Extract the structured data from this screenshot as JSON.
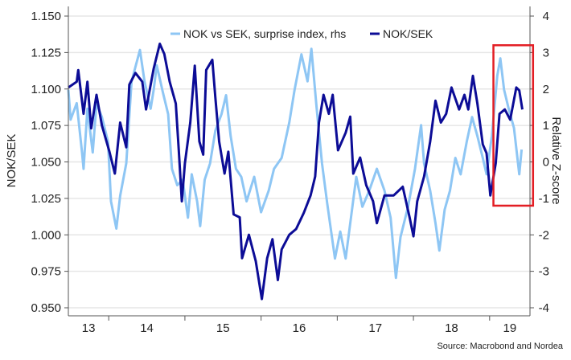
{
  "chart_data": {
    "type": "line",
    "title": "",
    "xlabel": "",
    "ylabel": "NOK/SEK",
    "ylabel_right": "Relative Z-score",
    "source": "Source: Macrobond and Nordea",
    "x_ticks": [
      "13",
      "14",
      "15",
      "16",
      "17",
      "18",
      "19"
    ],
    "xlim": [
      2013.47,
      2019.53
    ],
    "ylim": [
      0.95,
      1.15
    ],
    "ylim_right": [
      -4,
      4
    ],
    "y_ticks": [
      "0.950",
      "0.975",
      "1.000",
      "1.025",
      "1.050",
      "1.075",
      "1.100",
      "1.125",
      "1.150"
    ],
    "y_ticks_right": [
      "-4",
      "-3",
      "-2",
      "-1",
      "0",
      "1",
      "2",
      "3",
      "4"
    ],
    "grid": "horizontal",
    "legend_position": "top-center",
    "highlight_box": {
      "x_range": [
        2019.05,
        2019.57
      ],
      "z_range": [
        -1.2,
        3.2
      ],
      "color": "#e31e24"
    },
    "series": [
      {
        "name": "NOK vs SEK, surprise index, rhs",
        "axis": "right",
        "color": "#8ec6f4",
        "x": [
          2013.47,
          2013.5,
          2013.58,
          2013.65,
          2013.67,
          2013.72,
          2013.79,
          2013.84,
          2013.91,
          2013.99,
          2014.03,
          2014.1,
          2014.15,
          2014.23,
          2014.3,
          2014.41,
          2014.47,
          2014.55,
          2014.59,
          2014.63,
          2014.71,
          2014.78,
          2014.83,
          2014.9,
          2014.97,
          2015.04,
          2015.09,
          2015.16,
          2015.2,
          2015.26,
          2015.33,
          2015.4,
          2015.48,
          2015.54,
          2015.6,
          2015.67,
          2015.74,
          2015.81,
          2015.91,
          2016.0,
          2016.1,
          2016.17,
          2016.27,
          2016.37,
          2016.44,
          2016.53,
          2016.61,
          2016.66,
          2016.73,
          2016.8,
          2016.87,
          2016.97,
          2017.04,
          2017.11,
          2017.18,
          2017.25,
          2017.33,
          2017.42,
          2017.52,
          2017.62,
          2017.7,
          2017.77,
          2017.83,
          2017.93,
          2018.02,
          2018.1,
          2018.14,
          2018.22,
          2018.29,
          2018.34,
          2018.41,
          2018.48,
          2018.55,
          2018.62,
          2018.7,
          2018.77,
          2018.84,
          2018.91,
          2018.96,
          2019.03,
          2019.1,
          2019.14,
          2019.19,
          2019.25,
          2019.32,
          2019.39,
          2019.42
        ],
        "values": [
          1.98,
          1.16,
          1.61,
          0.26,
          -0.19,
          1.46,
          0.26,
          1.61,
          1.23,
          0.56,
          -1.08,
          -1.83,
          -0.93,
          -0.04,
          2.21,
          3.07,
          2.21,
          1.46,
          1.98,
          2.65,
          1.91,
          1.31,
          -0.19,
          -0.64,
          -0.49,
          -1.53,
          -0.34,
          -1.08,
          -1.76,
          -0.49,
          -0.04,
          0.86,
          1.31,
          1.83,
          0.71,
          -0.19,
          -0.41,
          -1.08,
          -0.41,
          -1.38,
          -0.79,
          -0.19,
          0.11,
          1.08,
          1.98,
          2.95,
          2.21,
          3.1,
          1.46,
          -0.04,
          -1.16,
          -2.65,
          -1.91,
          -2.65,
          -1.53,
          -0.41,
          -1.23,
          -0.79,
          -0.19,
          -0.79,
          -1.53,
          -3.18,
          -2.06,
          -1.23,
          -0.19,
          1.01,
          -0.04,
          -0.79,
          -1.68,
          -2.43,
          -1.31,
          -0.79,
          0.11,
          -0.34,
          0.56,
          1.23,
          0.71,
          0.11,
          -0.34,
          0.71,
          2.36,
          2.84,
          1.98,
          1.46,
          0.93,
          -0.34,
          0.34
        ]
      },
      {
        "name": "NOK/SEK",
        "axis": "left",
        "color": "#0c0c96",
        "x": [
          2013.47,
          2013.58,
          2013.6,
          2013.67,
          2013.72,
          2013.77,
          2013.84,
          2013.91,
          2014.01,
          2014.08,
          2014.15,
          2014.23,
          2014.27,
          2014.35,
          2014.44,
          2014.49,
          2014.59,
          2014.67,
          2014.73,
          2014.8,
          2014.88,
          2014.92,
          2014.96,
          2015.0,
          2015.07,
          2015.13,
          2015.19,
          2015.24,
          2015.28,
          2015.36,
          2015.4,
          2015.45,
          2015.52,
          2015.57,
          2015.64,
          2015.72,
          2015.75,
          2015.84,
          2015.93,
          2016.01,
          2016.08,
          2016.15,
          2016.22,
          2016.27,
          2016.37,
          2016.46,
          2016.56,
          2016.65,
          2016.71,
          2016.76,
          2016.82,
          2016.89,
          2016.94,
          2017.01,
          2017.11,
          2017.17,
          2017.21,
          2017.3,
          2017.38,
          2017.47,
          2017.52,
          2017.62,
          2017.74,
          2017.86,
          2017.95,
          2018.0,
          2018.05,
          2018.14,
          2018.22,
          2018.29,
          2018.36,
          2018.43,
          2018.5,
          2018.6,
          2018.67,
          2018.72,
          2018.78,
          2018.84,
          2018.91,
          2018.96,
          2019.01,
          2019.08,
          2019.13,
          2019.2,
          2019.27,
          2019.35,
          2019.39,
          2019.43
        ],
        "values": [
          1.101,
          1.105,
          1.113,
          1.083,
          1.105,
          1.073,
          1.096,
          1.075,
          1.057,
          1.042,
          1.077,
          1.06,
          1.103,
          1.111,
          1.105,
          1.086,
          1.114,
          1.131,
          1.124,
          1.105,
          1.09,
          1.058,
          1.023,
          1.049,
          1.077,
          1.116,
          1.064,
          1.055,
          1.113,
          1.12,
          1.094,
          1.064,
          1.042,
          1.057,
          1.014,
          1.012,
          0.984,
          1.0,
          0.982,
          0.956,
          0.984,
          0.997,
          0.969,
          0.99,
          1.0,
          1.004,
          1.015,
          1.027,
          1.04,
          1.077,
          1.096,
          1.083,
          1.096,
          1.058,
          1.07,
          1.081,
          1.042,
          1.053,
          1.034,
          1.023,
          1.008,
          1.027,
          1.027,
          1.033,
          1.012,
          0.999,
          1.023,
          1.04,
          1.064,
          1.092,
          1.077,
          1.083,
          1.101,
          1.086,
          1.096,
          1.086,
          1.109,
          1.09,
          1.062,
          1.056,
          1.027,
          1.049,
          1.083,
          1.086,
          1.079,
          1.101,
          1.099,
          1.086
        ]
      }
    ]
  }
}
